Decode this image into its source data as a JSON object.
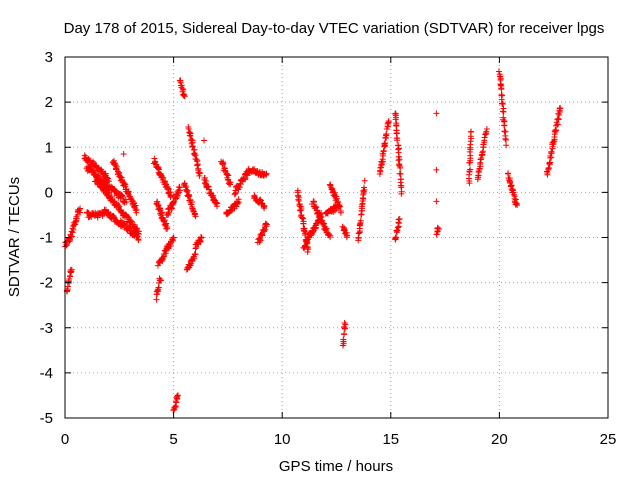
{
  "chart_data": {
    "type": "scatter",
    "title": "Day 178 of 2015, Sidereal Day-to-day VTEC variation (SDTVAR) for receiver lpgs",
    "xlabel": "GPS time / hours",
    "ylabel": "SDTVAR / TECUs",
    "xlim": [
      0,
      25
    ],
    "ylim": [
      -5,
      3
    ],
    "xticks": [
      0,
      5,
      10,
      15,
      20,
      25
    ],
    "yticks": [
      -5,
      -4,
      -3,
      -2,
      -1,
      0,
      1,
      2,
      3
    ],
    "grid": true,
    "marker": "+",
    "color": "#ff0000",
    "segments": [
      {
        "x0": 0.0,
        "x1": 0.35,
        "y0": -1.2,
        "y1": -0.9
      },
      {
        "x0": 0.1,
        "x1": 0.3,
        "y0": -2.2,
        "y1": -1.7
      },
      {
        "x0": 0.35,
        "x1": 0.7,
        "y0": -0.8,
        "y1": -0.35
      },
      {
        "x0": 0.9,
        "x1": 2.0,
        "y0": 0.8,
        "y1": 0.3
      },
      {
        "x0": 1.0,
        "x1": 2.8,
        "y0": 0.55,
        "y1": -0.2
      },
      {
        "x0": 1.0,
        "x1": 1.8,
        "y0": -0.5,
        "y1": -0.5
      },
      {
        "x0": 1.8,
        "x1": 3.4,
        "y0": -0.4,
        "y1": -1.0
      },
      {
        "x0": 1.4,
        "x1": 3.4,
        "y0": 0.3,
        "y1": -0.9
      },
      {
        "x0": 2.2,
        "x1": 3.3,
        "y0": 0.7,
        "y1": -0.4
      },
      {
        "x0": 4.1,
        "x1": 4.9,
        "y0": 0.7,
        "y1": -0.1
      },
      {
        "x0": 4.2,
        "x1": 4.4,
        "y0": -2.35,
        "y1": -1.9
      },
      {
        "x0": 4.3,
        "x1": 5.0,
        "y0": -1.6,
        "y1": -1.0
      },
      {
        "x0": 4.2,
        "x1": 4.7,
        "y0": -0.2,
        "y1": -0.8
      },
      {
        "x0": 4.7,
        "x1": 5.3,
        "y0": -0.5,
        "y1": 0.1
      },
      {
        "x0": 5.0,
        "x1": 5.2,
        "y0": -4.8,
        "y1": -4.55
      },
      {
        "x0": 5.3,
        "x1": 5.5,
        "y0": 2.5,
        "y1": 2.1
      },
      {
        "x0": 5.5,
        "x1": 6.0,
        "y0": 0.2,
        "y1": -0.5
      },
      {
        "x0": 5.6,
        "x1": 6.0,
        "y0": -1.7,
        "y1": -1.4
      },
      {
        "x0": 5.7,
        "x1": 6.2,
        "y0": 1.4,
        "y1": 0.4
      },
      {
        "x0": 6.0,
        "x1": 6.3,
        "y0": -1.2,
        "y1": -1.0
      },
      {
        "x0": 6.4,
        "x1": 7.0,
        "y0": 0.3,
        "y1": -0.3
      },
      {
        "x0": 7.2,
        "x1": 7.6,
        "y0": 0.7,
        "y1": 0.2
      },
      {
        "x0": 7.4,
        "x1": 8.0,
        "y0": -0.5,
        "y1": -0.2
      },
      {
        "x0": 7.8,
        "x1": 8.5,
        "y0": 0.0,
        "y1": 0.5
      },
      {
        "x0": 8.5,
        "x1": 9.3,
        "y0": 0.5,
        "y1": 0.4
      },
      {
        "x0": 8.7,
        "x1": 9.2,
        "y0": -0.1,
        "y1": -0.3
      },
      {
        "x0": 8.9,
        "x1": 9.3,
        "y0": -1.1,
        "y1": -0.7
      },
      {
        "x0": 10.7,
        "x1": 11.2,
        "y0": 0.0,
        "y1": -1.3
      },
      {
        "x0": 11.0,
        "x1": 11.8,
        "y0": -1.2,
        "y1": -0.5
      },
      {
        "x0": 11.4,
        "x1": 12.2,
        "y0": -0.2,
        "y1": -1.0
      },
      {
        "x0": 12.0,
        "x1": 12.6,
        "y0": -0.5,
        "y1": -0.3
      },
      {
        "x0": 12.2,
        "x1": 12.7,
        "y0": 0.2,
        "y1": -0.4
      },
      {
        "x0": 12.8,
        "x1": 12.9,
        "y0": -3.4,
        "y1": -2.9
      },
      {
        "x0": 12.8,
        "x1": 13.0,
        "y0": -0.8,
        "y1": -1.0
      },
      {
        "x0": 13.5,
        "x1": 13.8,
        "y0": -1.1,
        "y1": 0.2
      },
      {
        "x0": 14.5,
        "x1": 14.9,
        "y0": 0.4,
        "y1": 1.6
      },
      {
        "x0": 15.2,
        "x1": 15.5,
        "y0": 1.8,
        "y1": 0.0
      },
      {
        "x0": 15.2,
        "x1": 15.4,
        "y0": -1.1,
        "y1": -0.6
      },
      {
        "x0": 17.1,
        "x1": 17.2,
        "y0": -0.9,
        "y1": -0.8
      },
      {
        "x0": 18.6,
        "x1": 18.7,
        "y0": 0.2,
        "y1": 1.4
      },
      {
        "x0": 19.0,
        "x1": 19.4,
        "y0": 0.3,
        "y1": 1.4
      },
      {
        "x0": 20.0,
        "x1": 20.3,
        "y0": 2.7,
        "y1": 1.1
      },
      {
        "x0": 20.4,
        "x1": 20.8,
        "y0": 0.4,
        "y1": -0.3
      },
      {
        "x0": 22.2,
        "x1": 22.8,
        "y0": 0.4,
        "y1": 1.9
      }
    ],
    "isolated": [
      {
        "x": 17.1,
        "y": 1.75
      },
      {
        "x": 17.1,
        "y": 0.5
      },
      {
        "x": 17.1,
        "y": -0.2
      },
      {
        "x": 6.4,
        "y": 1.15
      },
      {
        "x": 2.7,
        "y": 0.85
      }
    ]
  }
}
